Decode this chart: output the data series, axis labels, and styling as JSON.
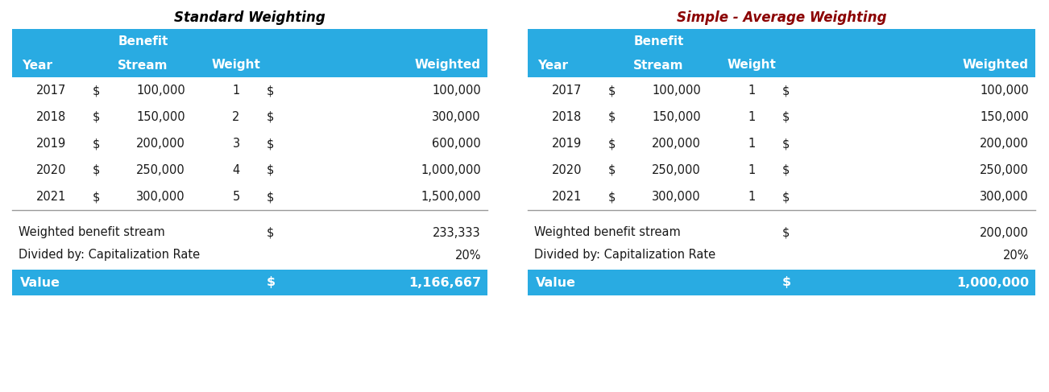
{
  "title_left": "Standard Weighting",
  "title_right": "Simple - Average Weighting",
  "title_left_color": "#000000",
  "title_right_color": "#8B0000",
  "header_bg": "#29ABE2",
  "header_text_color": "#FFFFFF",
  "body_text_color": "#1a1a1a",
  "bg_color": "#FFFFFF",
  "left_table": {
    "rows": [
      [
        "2017",
        "$",
        "100,000",
        "1",
        "$",
        "100,000"
      ],
      [
        "2018",
        "$",
        "150,000",
        "2",
        "$",
        "300,000"
      ],
      [
        "2019",
        "$",
        "200,000",
        "3",
        "$",
        "600,000"
      ],
      [
        "2020",
        "$",
        "250,000",
        "4",
        "$",
        "1,000,000"
      ],
      [
        "2021",
        "$",
        "300,000",
        "5",
        "$",
        "1,500,000"
      ]
    ],
    "summary_rows": [
      [
        "Weighted benefit stream",
        "$",
        "233,333"
      ],
      [
        "Divided by: Capitalization Rate",
        "",
        "20%"
      ]
    ],
    "value_row": [
      "Value",
      "$",
      "1,166,667"
    ]
  },
  "right_table": {
    "rows": [
      [
        "2017",
        "$",
        "100,000",
        "1",
        "$",
        "100,000"
      ],
      [
        "2018",
        "$",
        "150,000",
        "1",
        "$",
        "150,000"
      ],
      [
        "2019",
        "$",
        "200,000",
        "1",
        "$",
        "200,000"
      ],
      [
        "2020",
        "$",
        "250,000",
        "1",
        "$",
        "250,000"
      ],
      [
        "2021",
        "$",
        "300,000",
        "1",
        "$",
        "300,000"
      ]
    ],
    "summary_rows": [
      [
        "Weighted benefit stream",
        "$",
        "200,000"
      ],
      [
        "Divided by: Capitalization Rate",
        "",
        "20%"
      ]
    ],
    "value_row": [
      "Value",
      "$",
      "1,000,000"
    ]
  }
}
